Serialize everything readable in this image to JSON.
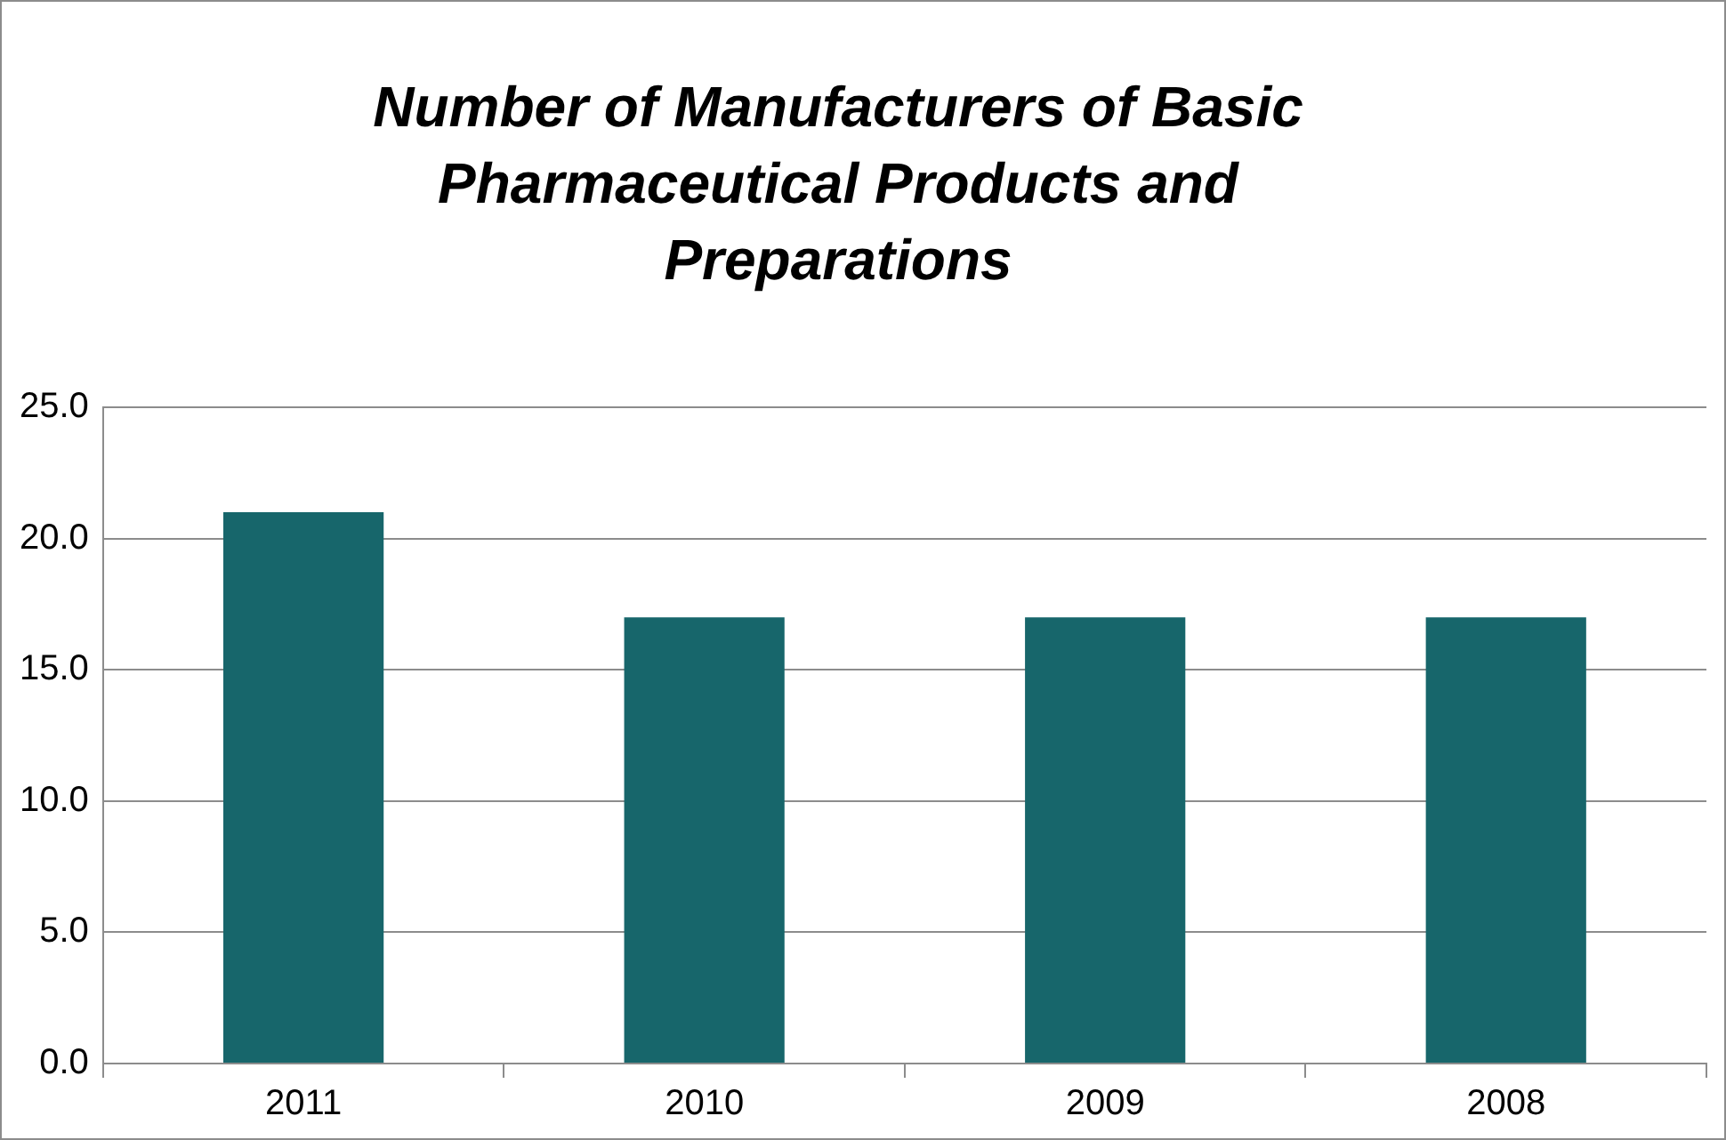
{
  "chart_data": {
    "type": "bar",
    "title": "Number of Manufacturers of Basic Pharmaceutical Products and Preparations",
    "categories": [
      "2011",
      "2010",
      "2009",
      "2008"
    ],
    "values": [
      21,
      17,
      17,
      17
    ],
    "color": "#17666b",
    "ylim": [
      0,
      25
    ],
    "yticks": [
      {
        "value": 0,
        "label": "0.0"
      },
      {
        "value": 5,
        "label": "5.0"
      },
      {
        "value": 10,
        "label": "10.0"
      },
      {
        "value": 15,
        "label": "15.0"
      },
      {
        "value": 20,
        "label": "20.0"
      },
      {
        "value": 25,
        "label": "25.0"
      }
    ],
    "grid": "y",
    "legend": false
  }
}
